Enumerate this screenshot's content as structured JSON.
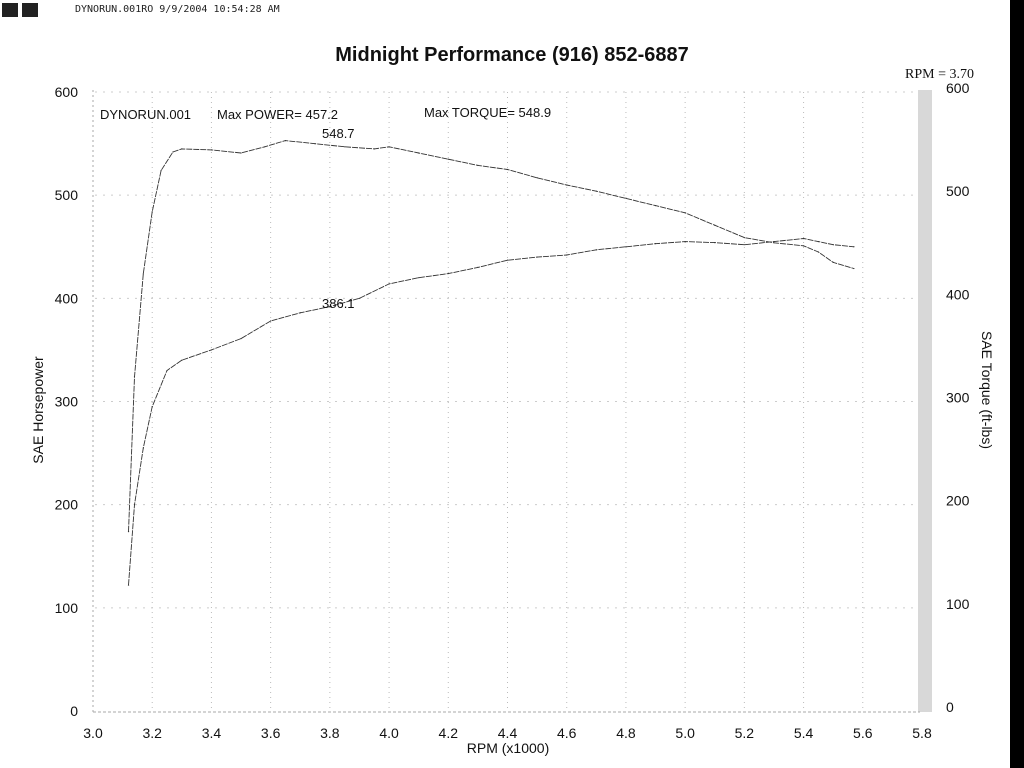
{
  "header": {
    "file_info": "DYNORUN.001RO  9/9/2004 10:54:28 AM"
  },
  "chart_data": {
    "type": "line",
    "title": "Midnight Performance (916) 852-6887",
    "xlabel": "RPM (x1000)",
    "ylabel": "SAE Horsepower",
    "ylabel_right": "SAE Torque (ft-lbs)",
    "xlim": [
      3.0,
      5.8
    ],
    "ylim": [
      0,
      600
    ],
    "ylim_right": [
      0,
      600
    ],
    "x_ticks": [
      "3.0",
      "3.2",
      "3.4",
      "3.6",
      "3.8",
      "4.0",
      "4.2",
      "4.4",
      "4.6",
      "4.8",
      "5.0",
      "5.2",
      "5.4",
      "5.6",
      "5.8"
    ],
    "y_ticks": [
      "0",
      "100",
      "200",
      "300",
      "400",
      "500",
      "600"
    ],
    "y_ticks_right": [
      "0",
      "100",
      "200",
      "300",
      "400",
      "500",
      "600"
    ],
    "grid": true,
    "rpm_note": "RPM = 3.70",
    "annotations": {
      "run": "DYNORUN.001",
      "max_power": "Max POWER= 457.2",
      "max_torque": "Max TORQUE= 548.9",
      "torque_label": "548.7",
      "power_label": "386.1"
    },
    "series": [
      {
        "name": "Torque",
        "axis": "right",
        "x": [
          3.12,
          3.14,
          3.17,
          3.2,
          3.23,
          3.27,
          3.3,
          3.4,
          3.5,
          3.58,
          3.65,
          3.75,
          3.85,
          3.95,
          4.0,
          4.1,
          4.2,
          4.3,
          4.4,
          4.5,
          4.6,
          4.7,
          4.8,
          4.9,
          5.0,
          5.1,
          5.2,
          5.3,
          5.4,
          5.45,
          5.5,
          5.57
        ],
        "y": [
          170,
          320,
          420,
          480,
          520,
          538,
          541,
          540,
          537,
          543,
          549,
          546,
          543,
          541,
          543,
          537,
          531,
          525,
          521,
          513,
          506,
          500,
          493,
          486,
          479,
          467,
          455,
          450,
          447,
          441,
          431,
          425
        ]
      },
      {
        "name": "Power",
        "axis": "left",
        "x": [
          3.12,
          3.14,
          3.17,
          3.2,
          3.25,
          3.3,
          3.4,
          3.5,
          3.6,
          3.7,
          3.8,
          3.9,
          4.0,
          4.1,
          4.2,
          4.3,
          4.4,
          4.5,
          4.6,
          4.7,
          4.8,
          4.9,
          5.0,
          5.1,
          5.2,
          5.3,
          5.4,
          5.45,
          5.5,
          5.57
        ],
        "y": [
          122,
          200,
          255,
          295,
          330,
          340,
          350,
          361,
          378,
          386,
          392,
          400,
          414,
          420,
          424,
          430,
          437,
          440,
          442,
          447,
          450,
          453,
          455,
          454,
          452,
          455,
          458,
          455,
          452,
          450
        ]
      }
    ]
  }
}
